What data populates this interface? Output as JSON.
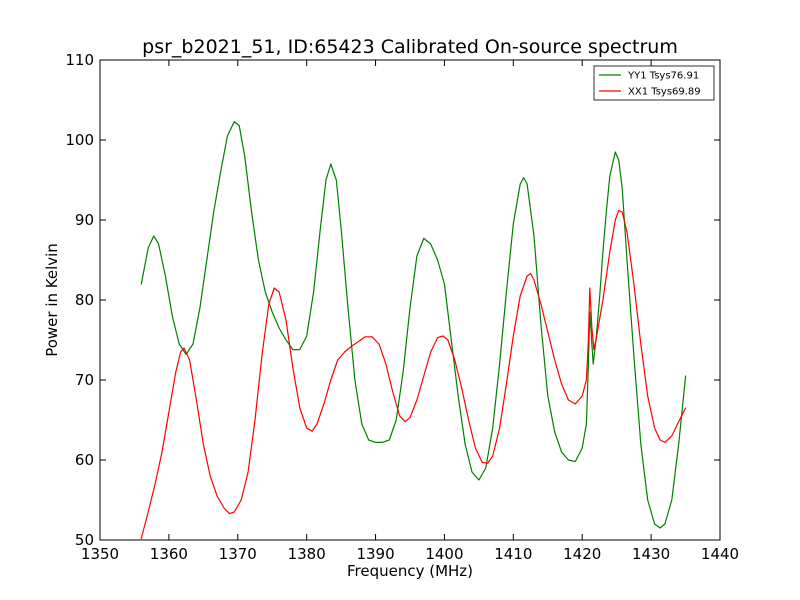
{
  "chart_data": {
    "type": "line",
    "title": "psr_b2021_51, ID:65423 Calibrated On-source spectrum",
    "xlabel": "Frequency (MHz)",
    "ylabel": "Power in Kelvin",
    "xlim": [
      1350,
      1440
    ],
    "ylim": [
      50,
      110
    ],
    "xticks": [
      "1350",
      "1360",
      "1370",
      "1380",
      "1390",
      "1400",
      "1410",
      "1420",
      "1430",
      "1440"
    ],
    "yticks": [
      "50",
      "60",
      "70",
      "80",
      "90",
      "100",
      "110"
    ],
    "grid": false,
    "legend_position": "top-right",
    "series": [
      {
        "name": "YY1 Tsys76.91",
        "color": "#008000",
        "points": [
          [
            1356.0,
            82.0
          ],
          [
            1357.0,
            86.5
          ],
          [
            1357.8,
            88.0
          ],
          [
            1358.5,
            87.0
          ],
          [
            1359.5,
            83.0
          ],
          [
            1360.5,
            78.0
          ],
          [
            1361.5,
            74.5
          ],
          [
            1362.5,
            73.2
          ],
          [
            1363.5,
            74.5
          ],
          [
            1364.5,
            79.0
          ],
          [
            1365.5,
            85.0
          ],
          [
            1366.5,
            91.0
          ],
          [
            1367.5,
            96.0
          ],
          [
            1368.5,
            100.5
          ],
          [
            1369.5,
            102.3
          ],
          [
            1370.2,
            101.8
          ],
          [
            1371.0,
            98.0
          ],
          [
            1372.0,
            91.0
          ],
          [
            1373.0,
            85.0
          ],
          [
            1374.0,
            81.0
          ],
          [
            1375.0,
            78.5
          ],
          [
            1376.0,
            76.5
          ],
          [
            1377.0,
            75.0
          ],
          [
            1378.0,
            73.8
          ],
          [
            1379.0,
            73.8
          ],
          [
            1380.0,
            75.5
          ],
          [
            1381.0,
            81.0
          ],
          [
            1382.0,
            89.0
          ],
          [
            1382.8,
            95.0
          ],
          [
            1383.5,
            97.0
          ],
          [
            1384.3,
            95.0
          ],
          [
            1385.0,
            89.0
          ],
          [
            1386.0,
            79.0
          ],
          [
            1387.0,
            70.0
          ],
          [
            1388.0,
            64.5
          ],
          [
            1389.0,
            62.5
          ],
          [
            1390.0,
            62.2
          ],
          [
            1391.0,
            62.2
          ],
          [
            1392.0,
            62.5
          ],
          [
            1393.0,
            65.0
          ],
          [
            1394.0,
            71.0
          ],
          [
            1395.0,
            79.0
          ],
          [
            1396.0,
            85.5
          ],
          [
            1397.0,
            87.7
          ],
          [
            1398.0,
            87.0
          ],
          [
            1399.0,
            85.0
          ],
          [
            1400.0,
            82.0
          ],
          [
            1401.0,
            75.0
          ],
          [
            1402.0,
            68.0
          ],
          [
            1403.0,
            62.0
          ],
          [
            1404.0,
            58.5
          ],
          [
            1405.0,
            57.5
          ],
          [
            1406.0,
            59.0
          ],
          [
            1407.0,
            64.0
          ],
          [
            1408.0,
            72.0
          ],
          [
            1409.0,
            81.0
          ],
          [
            1410.0,
            89.5
          ],
          [
            1411.0,
            94.5
          ],
          [
            1411.5,
            95.3
          ],
          [
            1412.0,
            94.5
          ],
          [
            1413.0,
            88.0
          ],
          [
            1414.0,
            77.0
          ],
          [
            1415.0,
            68.0
          ],
          [
            1416.0,
            63.5
          ],
          [
            1417.0,
            61.0
          ],
          [
            1418.0,
            60.0
          ],
          [
            1419.0,
            59.8
          ],
          [
            1420.0,
            61.5
          ],
          [
            1420.6,
            64.5
          ],
          [
            1420.9,
            72.0
          ],
          [
            1421.1,
            78.5
          ],
          [
            1421.4,
            74.5
          ],
          [
            1421.6,
            72.0
          ],
          [
            1422.0,
            75.0
          ],
          [
            1422.5,
            80.0
          ],
          [
            1423.0,
            86.0
          ],
          [
            1423.5,
            91.0
          ],
          [
            1424.0,
            95.5
          ],
          [
            1424.8,
            98.5
          ],
          [
            1425.3,
            97.5
          ],
          [
            1425.8,
            94.0
          ],
          [
            1426.5,
            85.0
          ],
          [
            1427.5,
            73.0
          ],
          [
            1428.5,
            62.0
          ],
          [
            1429.5,
            55.0
          ],
          [
            1430.5,
            52.0
          ],
          [
            1431.3,
            51.5
          ],
          [
            1432.0,
            52.0
          ],
          [
            1433.0,
            55.0
          ],
          [
            1434.0,
            62.0
          ],
          [
            1435.0,
            70.5
          ]
        ]
      },
      {
        "name": "XX1 Tsys69.89",
        "color": "#ff0000",
        "points": [
          [
            1356.0,
            50.2
          ],
          [
            1357.0,
            53.5
          ],
          [
            1358.0,
            57.0
          ],
          [
            1359.0,
            61.0
          ],
          [
            1360.0,
            66.0
          ],
          [
            1361.0,
            71.0
          ],
          [
            1361.7,
            73.5
          ],
          [
            1362.2,
            74.0
          ],
          [
            1363.0,
            72.5
          ],
          [
            1364.0,
            67.5
          ],
          [
            1365.0,
            62.0
          ],
          [
            1366.0,
            58.0
          ],
          [
            1367.0,
            55.5
          ],
          [
            1368.0,
            54.0
          ],
          [
            1368.8,
            53.3
          ],
          [
            1369.5,
            53.5
          ],
          [
            1370.5,
            55.0
          ],
          [
            1371.5,
            58.5
          ],
          [
            1372.5,
            65.0
          ],
          [
            1373.5,
            73.0
          ],
          [
            1374.5,
            79.5
          ],
          [
            1375.3,
            81.5
          ],
          [
            1376.0,
            81.0
          ],
          [
            1377.0,
            77.5
          ],
          [
            1378.0,
            71.5
          ],
          [
            1379.0,
            66.5
          ],
          [
            1380.0,
            64.0
          ],
          [
            1380.8,
            63.6
          ],
          [
            1381.5,
            64.5
          ],
          [
            1382.5,
            67.0
          ],
          [
            1383.5,
            70.0
          ],
          [
            1384.5,
            72.5
          ],
          [
            1385.5,
            73.5
          ],
          [
            1386.5,
            74.2
          ],
          [
            1387.5,
            74.8
          ],
          [
            1388.5,
            75.4
          ],
          [
            1389.5,
            75.4
          ],
          [
            1390.5,
            74.5
          ],
          [
            1391.5,
            72.0
          ],
          [
            1392.5,
            68.5
          ],
          [
            1393.5,
            65.5
          ],
          [
            1394.3,
            64.8
          ],
          [
            1395.0,
            65.3
          ],
          [
            1396.0,
            67.5
          ],
          [
            1397.0,
            70.5
          ],
          [
            1398.0,
            73.5
          ],
          [
            1399.0,
            75.3
          ],
          [
            1399.8,
            75.5
          ],
          [
            1400.5,
            75.0
          ],
          [
            1401.5,
            72.5
          ],
          [
            1402.5,
            69.0
          ],
          [
            1403.5,
            65.0
          ],
          [
            1404.5,
            61.5
          ],
          [
            1405.5,
            59.7
          ],
          [
            1406.3,
            59.6
          ],
          [
            1407.0,
            60.5
          ],
          [
            1408.0,
            64.0
          ],
          [
            1409.0,
            69.5
          ],
          [
            1410.0,
            75.5
          ],
          [
            1411.0,
            80.5
          ],
          [
            1412.0,
            83.0
          ],
          [
            1412.5,
            83.3
          ],
          [
            1413.0,
            82.5
          ],
          [
            1414.0,
            79.5
          ],
          [
            1415.0,
            76.0
          ],
          [
            1416.0,
            72.5
          ],
          [
            1417.0,
            69.5
          ],
          [
            1418.0,
            67.5
          ],
          [
            1419.0,
            67.0
          ],
          [
            1420.0,
            68.0
          ],
          [
            1420.6,
            70.0
          ],
          [
            1420.9,
            75.0
          ],
          [
            1421.1,
            81.5
          ],
          [
            1421.4,
            76.5
          ],
          [
            1421.7,
            73.8
          ],
          [
            1422.0,
            75.0
          ],
          [
            1423.0,
            80.0
          ],
          [
            1424.0,
            86.0
          ],
          [
            1424.8,
            90.0
          ],
          [
            1425.3,
            91.2
          ],
          [
            1425.8,
            91.0
          ],
          [
            1426.5,
            88.5
          ],
          [
            1427.5,
            82.0
          ],
          [
            1428.5,
            74.5
          ],
          [
            1429.5,
            68.0
          ],
          [
            1430.5,
            64.0
          ],
          [
            1431.3,
            62.5
          ],
          [
            1432.0,
            62.2
          ],
          [
            1433.0,
            63.0
          ],
          [
            1434.0,
            64.8
          ],
          [
            1435.0,
            66.5
          ]
        ]
      }
    ]
  }
}
